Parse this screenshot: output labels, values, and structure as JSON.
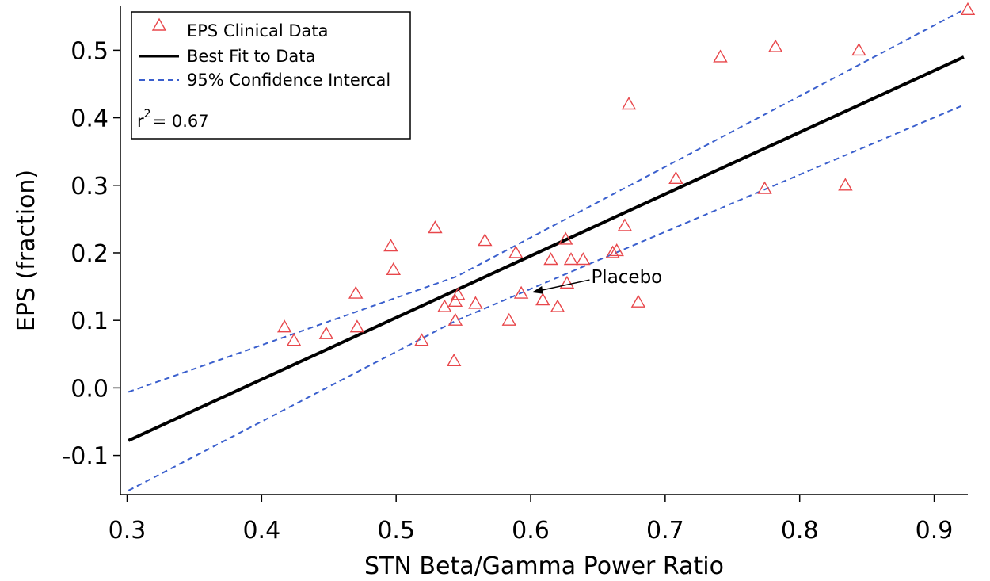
{
  "chart_data": {
    "type": "scatter",
    "title": "",
    "xlabel": "STN Beta/Gamma Power Ratio",
    "ylabel": "EPS (fraction)",
    "xlim": [
      0.295,
      0.925
    ],
    "ylim": [
      -0.158,
      0.565
    ],
    "xticks": [
      0.3,
      0.4,
      0.5,
      0.6,
      0.7,
      0.8,
      0.9
    ],
    "xtick_labels": [
      "0.3",
      "0.4",
      "0.5",
      "0.6",
      "0.7",
      "0.8",
      "0.9"
    ],
    "yticks": [
      -0.1,
      0.0,
      0.1,
      0.2,
      0.3,
      0.4,
      0.5
    ],
    "ytick_labels": [
      "-0.1",
      "0.0",
      "0.1",
      "0.2",
      "0.3",
      "0.4",
      "0.5"
    ],
    "colors": {
      "points": "#e8474b",
      "fit": "#000000",
      "ci": "#3a5fcd",
      "arrow": "#000000"
    },
    "series": [
      {
        "name": "EPS Clinical Data",
        "kind": "scatter",
        "x": [
          0.417,
          0.424,
          0.448,
          0.47,
          0.471,
          0.496,
          0.498,
          0.519,
          0.529,
          0.536,
          0.543,
          0.544,
          0.544,
          0.546,
          0.559,
          0.566,
          0.584,
          0.589,
          0.593,
          0.609,
          0.615,
          0.62,
          0.626,
          0.627,
          0.63,
          0.639,
          0.661,
          0.664,
          0.67,
          0.673,
          0.68,
          0.708,
          0.741,
          0.774,
          0.782,
          0.834,
          0.844,
          0.925
        ],
        "y": [
          0.09,
          0.07,
          0.08,
          0.14,
          0.09,
          0.21,
          0.175,
          0.07,
          0.237,
          0.12,
          0.04,
          0.1,
          0.128,
          0.138,
          0.125,
          0.218,
          0.1,
          0.2,
          0.14,
          0.13,
          0.19,
          0.12,
          0.22,
          0.155,
          0.19,
          0.19,
          0.2,
          0.203,
          0.24,
          0.42,
          0.127,
          0.31,
          0.49,
          0.295,
          0.505,
          0.3,
          0.5,
          0.56
        ]
      },
      {
        "name": "Best Fit to Data",
        "kind": "line",
        "x": [
          0.301,
          0.922
        ],
        "y": [
          -0.078,
          0.49
        ]
      },
      {
        "name": "95% Confidence Intercal",
        "kind": "dashed",
        "x": [
          0.301,
          0.545,
          0.922
        ],
        "y": [
          -0.006,
          0.165,
          0.56
        ]
      },
      {
        "name": "95% Confidence Intercal (lower)",
        "kind": "dashed",
        "x": [
          0.301,
          0.545,
          0.922
        ],
        "y": [
          -0.152,
          0.1,
          0.419
        ]
      }
    ],
    "legend": {
      "position": "top-left",
      "entries": [
        "EPS Clinical Data",
        "Best Fit to Data",
        "95% Confidence Intercal"
      ],
      "r_squared_label": "r",
      "r_squared_exponent": "2",
      "r_squared_value": "= 0.67"
    },
    "annotation": {
      "text": "Placebo",
      "target_x": 0.595,
      "target_y": 0.142,
      "text_x": 0.645,
      "text_y": 0.16
    }
  }
}
